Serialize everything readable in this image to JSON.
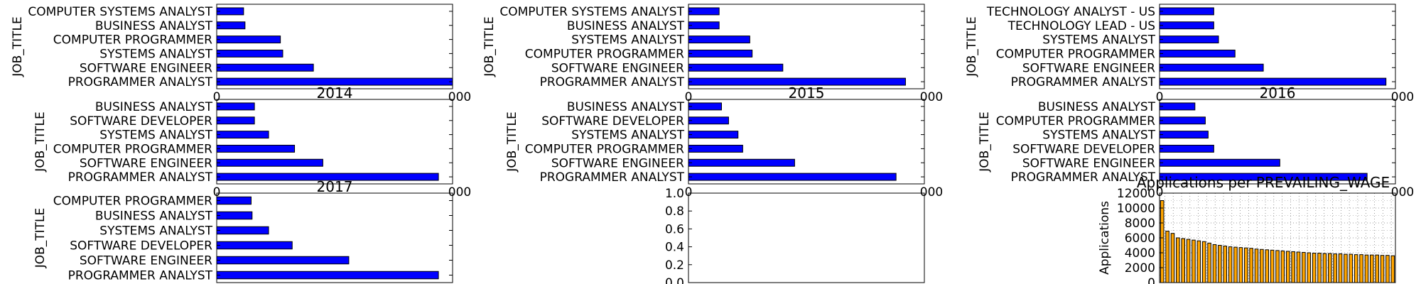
{
  "chart_data": [
    {
      "type": "bar",
      "orientation": "horizontal",
      "ylabel": "JOB_TITLE",
      "categories": [
        "PROGRAMMER ANALYST",
        "SOFTWARE ENGINEER",
        "SYSTEMS ANALYST",
        "COMPUTER PROGRAMMER",
        "BUSINESS ANALYST",
        "COMPUTER SYSTEMS ANALYST"
      ],
      "values": [
        50000,
        20500,
        14000,
        13500,
        6000,
        5700
      ],
      "xlim": [
        0,
        50000
      ],
      "visible_tick_labels": [
        "0",
        "000"
      ],
      "bar_color": "#0000ff"
    },
    {
      "type": "bar",
      "orientation": "horizontal",
      "ylabel": "JOB_TITLE",
      "categories": [
        "PROGRAMMER ANALYST",
        "SOFTWARE ENGINEER",
        "COMPUTER PROGRAMMER",
        "SYSTEMS ANALYST",
        "BUSINESS ANALYST",
        "COMPUTER SYSTEMS ANALYST"
      ],
      "values": [
        46000,
        20000,
        13500,
        13000,
        6500,
        6500
      ],
      "xlim": [
        0,
        50000
      ],
      "visible_tick_labels": [
        "0",
        "000"
      ],
      "bar_color": "#0000ff"
    },
    {
      "type": "bar",
      "orientation": "horizontal",
      "ylabel": "JOB_TITLE",
      "categories": [
        "PROGRAMMER ANALYST",
        "SOFTWARE ENGINEER",
        "COMPUTER PROGRAMMER",
        "SYSTEMS ANALYST",
        "TECHNOLOGY LEAD - US",
        "TECHNOLOGY ANALYST - US"
      ],
      "values": [
        48000,
        22000,
        16000,
        12500,
        11500,
        11500
      ],
      "xlim": [
        0,
        50000
      ],
      "visible_tick_labels": [
        "0",
        "000"
      ],
      "bar_color": "#0000ff"
    },
    {
      "type": "bar",
      "orientation": "horizontal",
      "title": "2014",
      "ylabel": "JOB_TITLE",
      "categories": [
        "PROGRAMMER ANALYST",
        "SOFTWARE ENGINEER",
        "COMPUTER PROGRAMMER",
        "SYSTEMS ANALYST",
        "SOFTWARE DEVELOPER",
        "BUSINESS ANALYST"
      ],
      "values": [
        47000,
        22500,
        16500,
        11000,
        8000,
        8000
      ],
      "xlim": [
        0,
        50000
      ],
      "visible_tick_labels": [
        "0",
        "000"
      ],
      "bar_color": "#0000ff"
    },
    {
      "type": "bar",
      "orientation": "horizontal",
      "title": "2015",
      "ylabel": "JOB_TITLE",
      "categories": [
        "PROGRAMMER ANALYST",
        "SOFTWARE ENGINEER",
        "COMPUTER PROGRAMMER",
        "SYSTEMS ANALYST",
        "SOFTWARE DEVELOPER",
        "BUSINESS ANALYST"
      ],
      "values": [
        44000,
        22500,
        11500,
        10500,
        8500,
        7000
      ],
      "xlim": [
        0,
        50000
      ],
      "visible_tick_labels": [
        "0",
        "000"
      ],
      "bar_color": "#0000ff"
    },
    {
      "type": "bar",
      "orientation": "horizontal",
      "title": "2016",
      "ylabel": "JOB_TITLE",
      "categories": [
        "PROGRAMMER ANALYST",
        "SOFTWARE ENGINEER",
        "SOFTWARE DEVELOPER",
        "SYSTEMS ANALYST",
        "COMPUTER PROGRAMMER",
        "BUSINESS ANALYST"
      ],
      "values": [
        44000,
        25500,
        11500,
        10300,
        9700,
        7500
      ],
      "xlim": [
        0,
        50000
      ],
      "visible_tick_labels": [
        "0",
        "000"
      ],
      "bar_color": "#0000ff"
    },
    {
      "type": "bar",
      "orientation": "horizontal",
      "title": "2017",
      "ylabel": "JOB_TITLE",
      "categories": [
        "PROGRAMMER ANALYST",
        "SOFTWARE ENGINEER",
        "SOFTWARE DEVELOPER",
        "SYSTEMS ANALYST",
        "BUSINESS ANALYST",
        "COMPUTER PROGRAMMER"
      ],
      "values": [
        47000,
        28000,
        16000,
        11000,
        7500,
        7300
      ],
      "xlim": [
        0,
        50000
      ],
      "bar_color": "#0000ff"
    },
    {
      "type": "empty",
      "ylim": [
        0,
        1
      ],
      "yticks": [
        "0.0",
        "0.2",
        "0.4",
        "0.6",
        "0.8",
        "1.0"
      ]
    },
    {
      "type": "bar",
      "title": "Applications per PREVAILING_WAGE",
      "ylabel": "Applications",
      "ylim": [
        0,
        12000
      ],
      "yticks": [
        "0",
        "2000",
        "4000",
        "6000",
        "8000",
        "10000",
        "12000"
      ],
      "grid": true,
      "bar_color": "#ffa500",
      "values": [
        11000,
        6900,
        6600,
        6000,
        5900,
        5800,
        5700,
        5600,
        5500,
        5300,
        5100,
        5000,
        4900,
        4800,
        4750,
        4700,
        4650,
        4600,
        4500,
        4450,
        4400,
        4350,
        4300,
        4250,
        4200,
        4150,
        4100,
        4050,
        4000,
        3950,
        3950,
        3900,
        3900,
        3850,
        3850,
        3800,
        3800,
        3750,
        3750,
        3700,
        3700,
        3700,
        3650,
        3650,
        3600
      ]
    }
  ]
}
